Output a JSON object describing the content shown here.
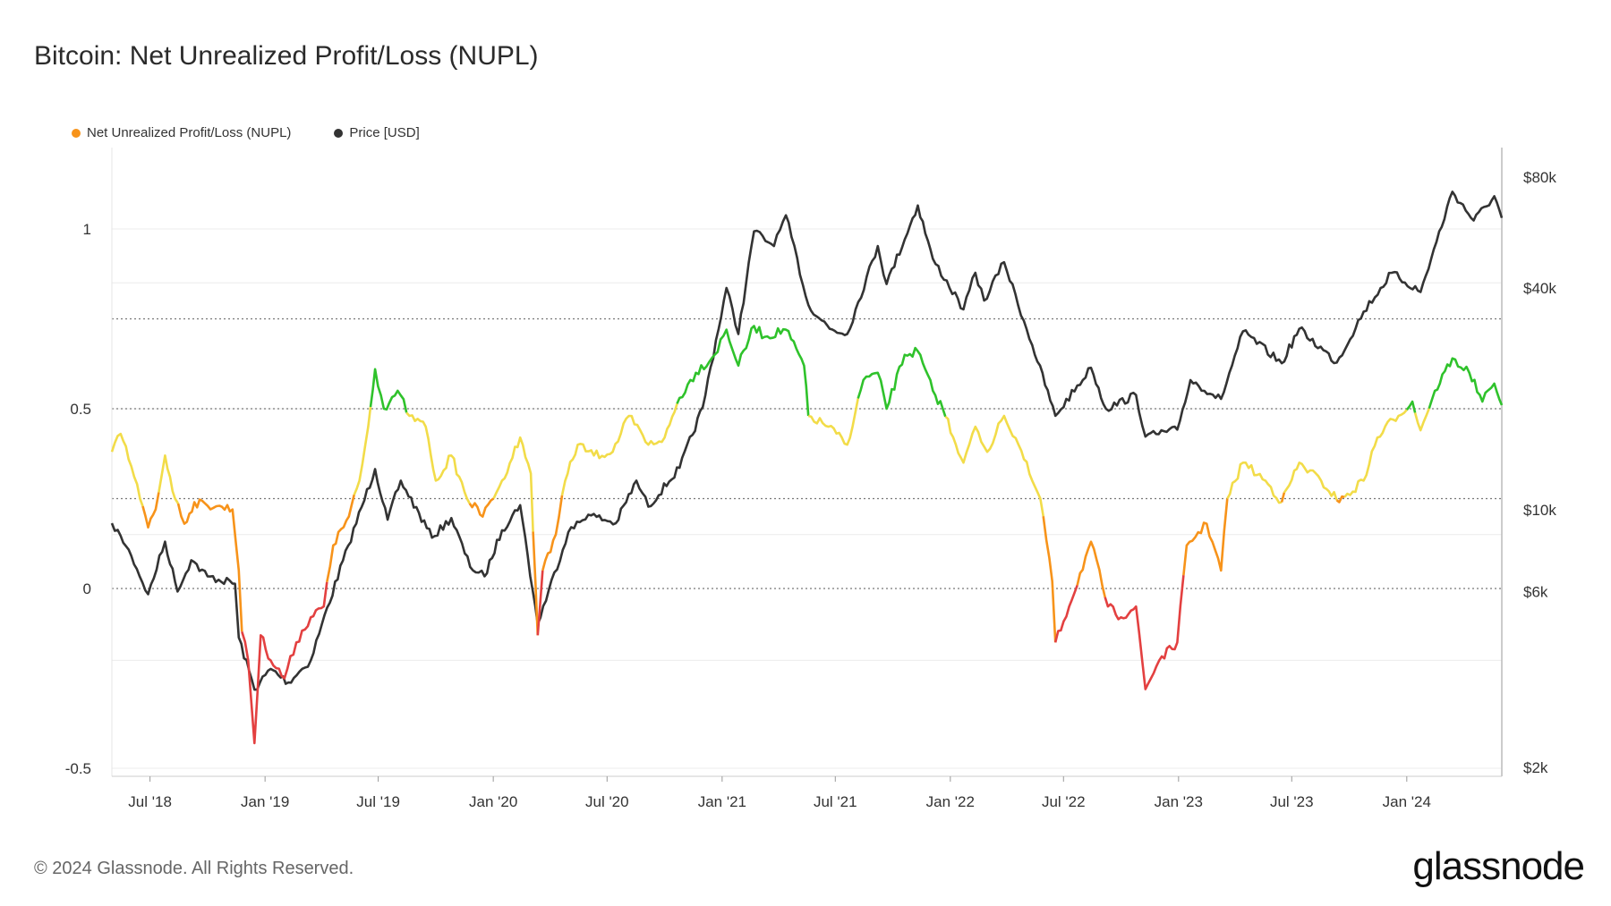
{
  "title": "Bitcoin: Net Unrealized Profit/Loss (NUPL)",
  "footer": "© 2024 Glassnode. All Rights Reserved.",
  "brand": "glassnode",
  "legend": [
    {
      "label": "Net Unrealized Profit/Loss (NUPL)",
      "color": "#f7931a"
    },
    {
      "label": "Price [USD]",
      "color": "#333333"
    }
  ],
  "chart_data": {
    "type": "line",
    "x_range": [
      "2018-05-01",
      "2024-06-01"
    ],
    "x_ticks": [
      "Jul '18",
      "Jan '19",
      "Jul '19",
      "Jan '20",
      "Jul '20",
      "Jan '21",
      "Jul '21",
      "Jan '22",
      "Jul '22",
      "Jan '23",
      "Jul '23",
      "Jan '24"
    ],
    "x_tick_dates": [
      "2018-07-01",
      "2019-01-01",
      "2019-07-01",
      "2020-01-01",
      "2020-07-01",
      "2021-01-01",
      "2021-07-01",
      "2022-01-01",
      "2022-07-01",
      "2023-01-01",
      "2023-07-01",
      "2024-01-01"
    ],
    "y_left": {
      "ticks": [
        "1",
        "0.5",
        "0",
        "-0.5"
      ],
      "tick_values": [
        1,
        0.5,
        0,
        -0.5
      ],
      "range": [
        -0.5,
        1.15
      ]
    },
    "y_right": {
      "scale": "log",
      "ticks": [
        "$80k",
        "$40k",
        "$10k",
        "$6k",
        "$2k"
      ],
      "tick_values": [
        80000,
        40000,
        10000,
        6000,
        2000
      ],
      "range": [
        2000,
        80000
      ]
    },
    "zone_lines": [
      0.75,
      0.5,
      0.25,
      0
    ],
    "zone_colors": {
      "capitulation": "#e34040",
      "hope_fear": "#f7931a",
      "optimism": "#f2dc49",
      "belief": "#2fc22b"
    },
    "series": [
      {
        "name": "Net Unrealized Profit/Loss (NUPL)",
        "axis": "left",
        "points": [
          [
            "2018-05-01",
            0.38
          ],
          [
            "2018-05-15",
            0.43
          ],
          [
            "2018-06-01",
            0.34
          ],
          [
            "2018-06-15",
            0.25
          ],
          [
            "2018-06-28",
            0.17
          ],
          [
            "2018-07-10",
            0.22
          ],
          [
            "2018-07-25",
            0.37
          ],
          [
            "2018-08-10",
            0.25
          ],
          [
            "2018-08-25",
            0.18
          ],
          [
            "2018-09-10",
            0.24
          ],
          [
            "2018-10-01",
            0.23
          ],
          [
            "2018-10-20",
            0.23
          ],
          [
            "2018-11-10",
            0.22
          ],
          [
            "2018-11-20",
            0.05
          ],
          [
            "2018-11-25",
            -0.12
          ],
          [
            "2018-12-05",
            -0.2
          ],
          [
            "2018-12-15",
            -0.43
          ],
          [
            "2018-12-25",
            -0.13
          ],
          [
            "2019-01-10",
            -0.2
          ],
          [
            "2019-02-01",
            -0.25
          ],
          [
            "2019-02-20",
            -0.15
          ],
          [
            "2019-03-15",
            -0.08
          ],
          [
            "2019-04-05",
            -0.05
          ],
          [
            "2019-04-20",
            0.12
          ],
          [
            "2019-05-15",
            0.2
          ],
          [
            "2019-06-01",
            0.3
          ],
          [
            "2019-06-15",
            0.45
          ],
          [
            "2019-06-26",
            0.61
          ],
          [
            "2019-07-10",
            0.5
          ],
          [
            "2019-08-01",
            0.55
          ],
          [
            "2019-08-20",
            0.48
          ],
          [
            "2019-09-15",
            0.45
          ],
          [
            "2019-10-01",
            0.3
          ],
          [
            "2019-10-26",
            0.37
          ],
          [
            "2019-11-20",
            0.25
          ],
          [
            "2019-12-15",
            0.2
          ],
          [
            "2020-01-15",
            0.3
          ],
          [
            "2020-02-13",
            0.42
          ],
          [
            "2020-03-01",
            0.32
          ],
          [
            "2020-03-12",
            -0.13
          ],
          [
            "2020-03-20",
            0.05
          ],
          [
            "2020-04-10",
            0.15
          ],
          [
            "2020-04-25",
            0.3
          ],
          [
            "2020-05-15",
            0.4
          ],
          [
            "2020-06-10",
            0.37
          ],
          [
            "2020-07-10",
            0.38
          ],
          [
            "2020-08-05",
            0.48
          ],
          [
            "2020-09-05",
            0.4
          ],
          [
            "2020-10-01",
            0.42
          ],
          [
            "2020-10-25",
            0.53
          ],
          [
            "2020-11-20",
            0.6
          ],
          [
            "2020-12-20",
            0.65
          ],
          [
            "2021-01-08",
            0.72
          ],
          [
            "2021-01-27",
            0.62
          ],
          [
            "2021-02-21",
            0.73
          ],
          [
            "2021-03-10",
            0.7
          ],
          [
            "2021-04-13",
            0.72
          ],
          [
            "2021-05-12",
            0.62
          ],
          [
            "2021-05-19",
            0.48
          ],
          [
            "2021-06-20",
            0.45
          ],
          [
            "2021-07-20",
            0.4
          ],
          [
            "2021-08-15",
            0.58
          ],
          [
            "2021-09-07",
            0.6
          ],
          [
            "2021-09-21",
            0.5
          ],
          [
            "2021-10-20",
            0.65
          ],
          [
            "2021-11-10",
            0.66
          ],
          [
            "2021-12-04",
            0.55
          ],
          [
            "2021-12-20",
            0.5
          ],
          [
            "2022-01-22",
            0.35
          ],
          [
            "2022-02-10",
            0.45
          ],
          [
            "2022-03-01",
            0.38
          ],
          [
            "2022-03-28",
            0.48
          ],
          [
            "2022-04-20",
            0.4
          ],
          [
            "2022-05-12",
            0.3
          ],
          [
            "2022-05-25",
            0.25
          ],
          [
            "2022-06-13",
            0.02
          ],
          [
            "2022-06-18",
            -0.15
          ],
          [
            "2022-07-10",
            -0.05
          ],
          [
            "2022-08-14",
            0.13
          ],
          [
            "2022-09-10",
            -0.05
          ],
          [
            "2022-10-01",
            -0.08
          ],
          [
            "2022-10-25",
            -0.05
          ],
          [
            "2022-11-09",
            -0.28
          ],
          [
            "2022-12-01",
            -0.2
          ],
          [
            "2022-12-30",
            -0.15
          ],
          [
            "2023-01-14",
            0.12
          ],
          [
            "2023-02-15",
            0.18
          ],
          [
            "2023-03-10",
            0.05
          ],
          [
            "2023-03-20",
            0.25
          ],
          [
            "2023-04-14",
            0.35
          ],
          [
            "2023-05-20",
            0.3
          ],
          [
            "2023-06-15",
            0.24
          ],
          [
            "2023-07-13",
            0.35
          ],
          [
            "2023-08-17",
            0.3
          ],
          [
            "2023-09-15",
            0.24
          ],
          [
            "2023-10-24",
            0.3
          ],
          [
            "2023-11-15",
            0.42
          ],
          [
            "2023-12-10",
            0.47
          ],
          [
            "2024-01-10",
            0.52
          ],
          [
            "2024-01-23",
            0.44
          ],
          [
            "2024-02-15",
            0.55
          ],
          [
            "2024-03-14",
            0.64
          ],
          [
            "2024-04-10",
            0.6
          ],
          [
            "2024-05-01",
            0.52
          ],
          [
            "2024-05-20",
            0.57
          ],
          [
            "2024-06-01",
            0.51
          ]
        ]
      },
      {
        "name": "Price [USD]",
        "axis": "right",
        "color": "#333333",
        "points": [
          [
            "2018-05-01",
            9200
          ],
          [
            "2018-05-15",
            8500
          ],
          [
            "2018-06-01",
            7500
          ],
          [
            "2018-06-28",
            5900
          ],
          [
            "2018-07-25",
            8200
          ],
          [
            "2018-08-14",
            6000
          ],
          [
            "2018-09-05",
            7300
          ],
          [
            "2018-10-01",
            6600
          ],
          [
            "2018-11-14",
            6300
          ],
          [
            "2018-11-20",
            4500
          ],
          [
            "2018-12-15",
            3250
          ],
          [
            "2019-01-10",
            3700
          ],
          [
            "2019-02-07",
            3400
          ],
          [
            "2019-03-15",
            3900
          ],
          [
            "2019-04-02",
            4900
          ],
          [
            "2019-05-14",
            8000
          ],
          [
            "2019-06-26",
            12900
          ],
          [
            "2019-07-16",
            9400
          ],
          [
            "2019-08-06",
            12000
          ],
          [
            "2019-09-25",
            8400
          ],
          [
            "2019-10-26",
            9500
          ],
          [
            "2019-11-25",
            7000
          ],
          [
            "2019-12-18",
            6600
          ],
          [
            "2020-01-15",
            8800
          ],
          [
            "2020-02-13",
            10300
          ],
          [
            "2020-03-12",
            4900
          ],
          [
            "2020-04-30",
            8700
          ],
          [
            "2020-06-01",
            9700
          ],
          [
            "2020-07-15",
            9200
          ],
          [
            "2020-08-17",
            12000
          ],
          [
            "2020-09-05",
            10200
          ],
          [
            "2020-10-25",
            13000
          ],
          [
            "2020-12-01",
            19000
          ],
          [
            "2021-01-08",
            40000
          ],
          [
            "2021-01-27",
            30000
          ],
          [
            "2021-02-21",
            57000
          ],
          [
            "2021-03-25",
            52000
          ],
          [
            "2021-04-13",
            63000
          ],
          [
            "2021-05-19",
            36000
          ],
          [
            "2021-06-22",
            31000
          ],
          [
            "2021-07-20",
            30000
          ],
          [
            "2021-09-07",
            52000
          ],
          [
            "2021-09-21",
            41000
          ],
          [
            "2021-11-10",
            67000
          ],
          [
            "2021-12-04",
            48000
          ],
          [
            "2022-01-22",
            35000
          ],
          [
            "2022-02-10",
            44000
          ],
          [
            "2022-02-24",
            37000
          ],
          [
            "2022-03-28",
            47000
          ],
          [
            "2022-05-12",
            28000
          ],
          [
            "2022-06-18",
            18000
          ],
          [
            "2022-08-14",
            24300
          ],
          [
            "2022-09-07",
            18800
          ],
          [
            "2022-10-25",
            20500
          ],
          [
            "2022-11-09",
            15800
          ],
          [
            "2022-12-30",
            16500
          ],
          [
            "2023-01-20",
            22500
          ],
          [
            "2023-03-10",
            20000
          ],
          [
            "2023-04-14",
            30500
          ],
          [
            "2023-06-15",
            25000
          ],
          [
            "2023-07-13",
            31000
          ],
          [
            "2023-09-11",
            25100
          ],
          [
            "2023-10-24",
            34500
          ],
          [
            "2023-12-08",
            44000
          ],
          [
            "2024-01-23",
            39000
          ],
          [
            "2024-03-14",
            73000
          ],
          [
            "2024-04-17",
            61000
          ],
          [
            "2024-05-20",
            71000
          ],
          [
            "2024-06-01",
            62000
          ]
        ]
      }
    ]
  }
}
